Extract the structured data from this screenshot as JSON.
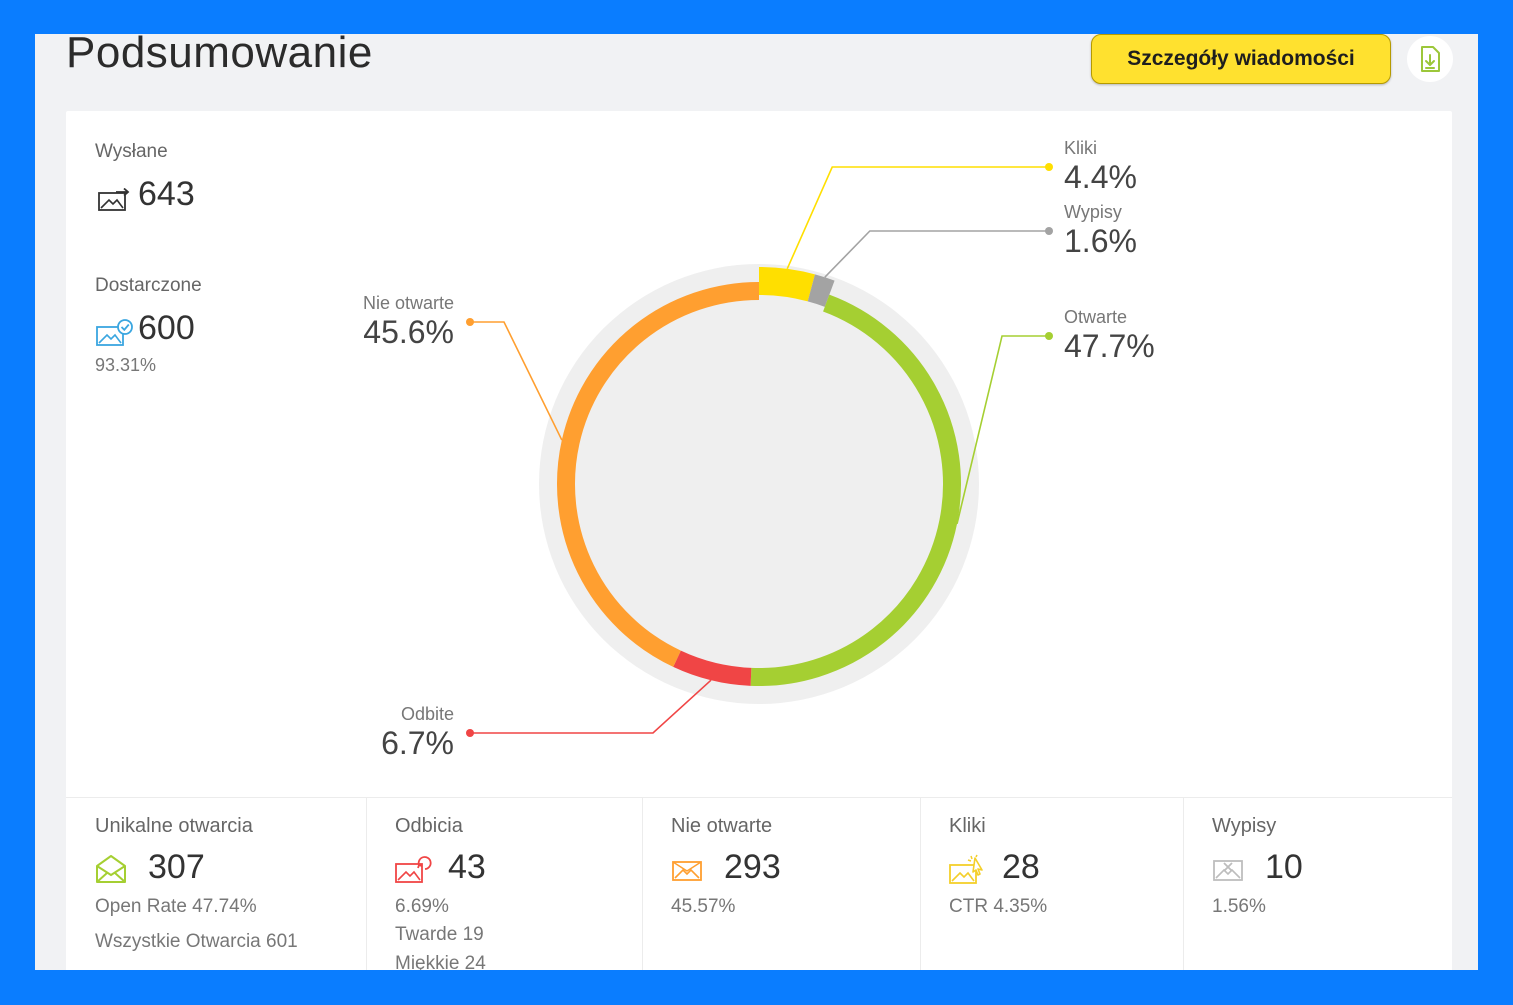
{
  "header": {
    "title": "Podsumowanie",
    "details_button": "Szczegóły wiadomości",
    "download_icon": "file-download-icon"
  },
  "kpis": {
    "sent": {
      "label": "Wysłane",
      "value": "643",
      "icon": "mail-sent-icon"
    },
    "delivered": {
      "label": "Dostarczone",
      "value": "600",
      "percent": "93.31%",
      "icon": "mail-delivered-icon"
    }
  },
  "chart_data": {
    "type": "pie",
    "style": "donut",
    "slices": [
      {
        "label": "Kliki",
        "value_label": "4.4%",
        "value": 4.4,
        "color": "#ffdf00"
      },
      {
        "label": "Wypisy",
        "value_label": "1.6%",
        "value": 1.6,
        "color": "#a3a3a3"
      },
      {
        "label": "Otwarte",
        "value_label": "47.7%",
        "value": 47.7,
        "color": "#a5cf32"
      },
      {
        "label": "Odbite",
        "value_label": "6.7%",
        "value": 6.7,
        "color": "#f04545"
      },
      {
        "label": "Nie otwarte",
        "value_label": "45.6%",
        "value": 45.6,
        "color": "#ff9f30"
      }
    ]
  },
  "stats": [
    {
      "title": "Unikalne otwarcia",
      "value": "307",
      "icon": "mail-open-icon",
      "lines": [
        "Open Rate 47.74%",
        "Wszystkie Otwarcia 601"
      ]
    },
    {
      "title": "Odbicia",
      "value": "43",
      "icon": "mail-bounce-icon",
      "lines": [
        "6.69%",
        "Twarde 19",
        "Miękkie 24"
      ]
    },
    {
      "title": "Nie otwarte",
      "value": "293",
      "icon": "mail-unopened-icon",
      "lines": [
        "45.57%"
      ]
    },
    {
      "title": "Kliki",
      "value": "28",
      "icon": "mail-click-icon",
      "lines": [
        "CTR 4.35%"
      ]
    },
    {
      "title": "Wypisy",
      "value": "10",
      "icon": "mail-unsubscribe-icon",
      "lines": [
        "1.56%"
      ]
    }
  ]
}
